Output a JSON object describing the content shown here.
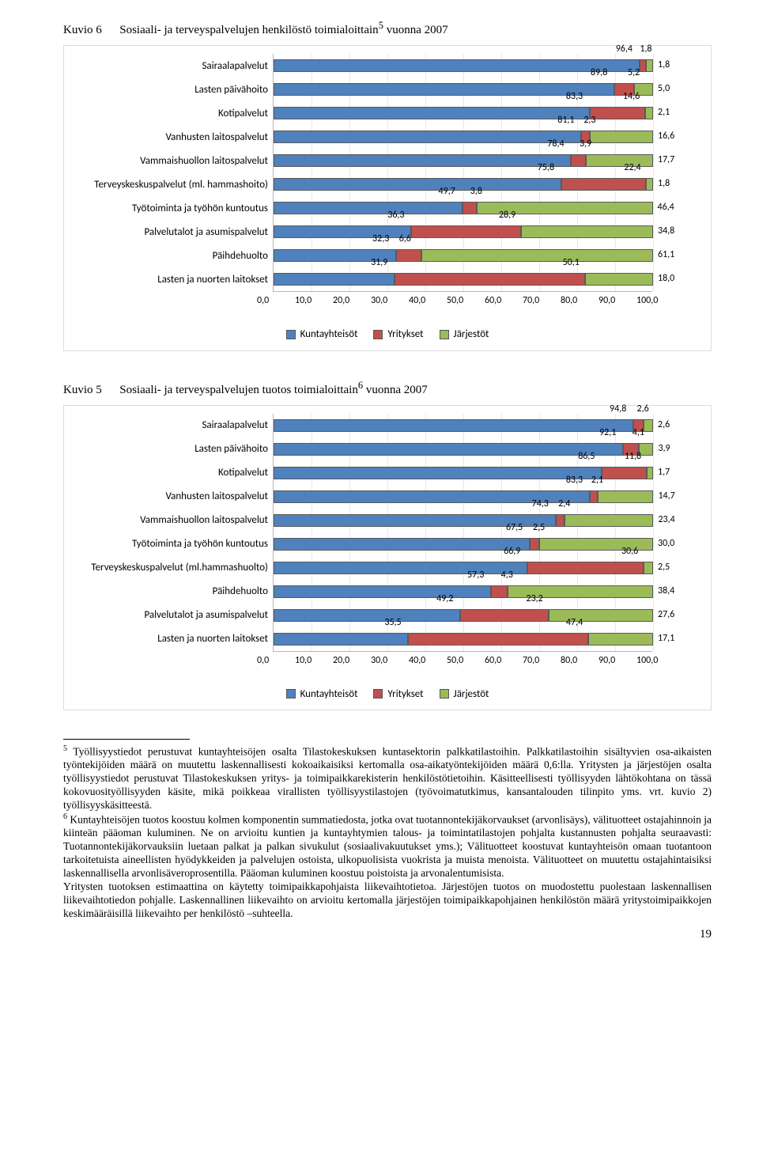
{
  "colors": {
    "series1": "#4f81bd",
    "series2": "#c0504d",
    "series3": "#9bbb59",
    "border": "#dcdcdc",
    "text": "#000000"
  },
  "xaxis": {
    "min": 0,
    "max": 100,
    "step": 10,
    "ticks": [
      "0,0",
      "10,0",
      "20,0",
      "30,0",
      "40,0",
      "50,0",
      "60,0",
      "70,0",
      "80,0",
      "90,0",
      "100,0"
    ]
  },
  "legend": [
    "Kuntayhteisöt",
    "Yritykset",
    "Järjestöt"
  ],
  "fig1": {
    "title_label": "Kuvio 6",
    "title_text": "Sosiaali- ja terveyspalvelujen henkilöstö toimialoittain",
    "title_sup": "5",
    "title_after": " vuonna 2007",
    "rows": [
      {
        "label": "Sairaalapalvelut",
        "v": [
          96.4,
          1.8,
          1.8
        ],
        "d": [
          "96,4",
          "1,8",
          "1,8"
        ]
      },
      {
        "label": "Lasten päivähoito",
        "v": [
          89.8,
          5.2,
          5.0
        ],
        "d": [
          "89,8",
          "5,2",
          "5,0"
        ]
      },
      {
        "label": "Kotipalvelut",
        "v": [
          83.3,
          14.6,
          2.1
        ],
        "d": [
          "83,3",
          "14,6",
          "2,1"
        ]
      },
      {
        "label": "Vanhusten laitospalvelut",
        "v": [
          81.1,
          2.3,
          16.6
        ],
        "d": [
          "81,1",
          "2,3",
          "16,6"
        ]
      },
      {
        "label": "Vammaishuollon laitospalvelut",
        "v": [
          78.4,
          3.9,
          17.7
        ],
        "d": [
          "78,4",
          "3,9",
          "17,7"
        ]
      },
      {
        "label": "Terveyskeskuspalvelut (ml. hammashoito)",
        "v": [
          75.8,
          22.4,
          1.8
        ],
        "d": [
          "75,8",
          "22,4",
          "1,8"
        ]
      },
      {
        "label": "Työtoiminta ja työhön kuntoutus",
        "v": [
          49.7,
          3.8,
          46.4
        ],
        "d": [
          "49,7",
          "3,8",
          "46,4"
        ]
      },
      {
        "label": "Palvelutalot ja asumispalvelut",
        "v": [
          36.3,
          28.9,
          34.8
        ],
        "d": [
          "36,3",
          "28,9",
          "34,8"
        ]
      },
      {
        "label": "Päihdehuolto",
        "v": [
          32.3,
          6.6,
          61.1
        ],
        "d": [
          "32,3",
          "6,6",
          "61,1"
        ]
      },
      {
        "label": "Lasten ja nuorten laitokset",
        "v": [
          31.9,
          50.1,
          18.0
        ],
        "d": [
          "31,9",
          "50,1",
          "18,0"
        ]
      }
    ]
  },
  "fig2": {
    "title_label": "Kuvio 5",
    "title_text": "Sosiaali- ja terveyspalvelujen tuotos toimialoittain",
    "title_sup": "6",
    "title_after": " vuonna 2007",
    "rows": [
      {
        "label": "Sairaalapalvelut",
        "v": [
          94.8,
          2.6,
          2.6
        ],
        "d": [
          "94,8",
          "2,6",
          "2,6"
        ]
      },
      {
        "label": "Lasten päivähoito",
        "v": [
          92.1,
          4.1,
          3.9
        ],
        "d": [
          "92,1",
          "4,1",
          "3,9"
        ]
      },
      {
        "label": "Kotipalvelut",
        "v": [
          86.5,
          11.8,
          1.7
        ],
        "d": [
          "86,5",
          "11,8",
          "1,7"
        ]
      },
      {
        "label": "Vanhusten laitospalvelut",
        "v": [
          83.3,
          2.1,
          14.7
        ],
        "d": [
          "83,3",
          "2,1",
          "14,7"
        ]
      },
      {
        "label": "Vammaishuollon laitospalvelut",
        "v": [
          74.3,
          2.4,
          23.4
        ],
        "d": [
          "74,3",
          "2,4",
          "23,4"
        ]
      },
      {
        "label": "Työtoiminta ja työhön kuntoutus",
        "v": [
          67.5,
          2.5,
          30.0
        ],
        "d": [
          "67,5",
          "2,5",
          "30,0"
        ]
      },
      {
        "label": "Terveyskeskuspalvelut (ml.hammashuolto)",
        "v": [
          66.9,
          30.6,
          2.5
        ],
        "d": [
          "66,9",
          "30,6",
          "2,5"
        ]
      },
      {
        "label": "Päihdehuolto",
        "v": [
          57.3,
          4.3,
          38.4
        ],
        "d": [
          "57,3",
          "4,3",
          "38,4"
        ]
      },
      {
        "label": "Palvelutalot ja asumispalvelut",
        "v": [
          49.2,
          23.2,
          27.6
        ],
        "d": [
          "49,2",
          "23,2",
          "27,6"
        ]
      },
      {
        "label": "Lasten ja nuorten laitokset",
        "v": [
          35.5,
          47.4,
          17.1
        ],
        "d": [
          "35,5",
          "47,4",
          "17,1"
        ]
      }
    ]
  },
  "footnotes": {
    "fn5": "Työllisyystiedot perustuvat kuntayhteisöjen osalta Tilastokeskuksen kuntasektorin palkkatilastoihin. Palkkatilastoihin sisältyvien osa-aikaisten työntekijöiden määrä on muutettu laskennallisesti kokoaikaisiksi kertomalla osa-aikatyöntekijöiden määrä 0,6:lla. Yritysten ja järjestöjen osalta työllisyystiedot perustuvat Tilastokeskuksen yritys- ja toimipaikkarekisterin henkilöstötietoihin. Käsitteellisesti työllisyyden lähtökohtana on tässä kokovuosityöllisyyden käsite, mikä poikkeaa virallisten työllisyystilastojen (työvoimatutkimus, kansantalouden tilinpito yms. vrt. kuvio 2) työllisyyskäsitteestä.",
    "fn6": "Kuntayhteisöjen tuotos koostuu kolmen komponentin summatiedosta, jotka ovat tuotannontekijäkorvaukset (arvonlisäys), välituotteet ostajahinnoin ja kiinteän pääoman kuluminen. Ne on arvioitu kuntien ja kuntayhtymien talous- ja toimintatilastojen pohjalta kustannusten pohjalta seuraavasti: Tuotannontekijäkorvauksiin luetaan palkat ja palkan sivukulut (sosiaalivakuutukset yms.); Välituotteet koostuvat kuntayhteisön omaan tuotantoon tarkoitetuista aineellisten hyödykkeiden ja palvelujen ostoista, ulkopuolisista vuokrista ja muista menoista. Välituotteet on muutettu ostajahintaisiksi laskennallisella arvonlisäveroprosentilla. Pääoman kuluminen koostuu poistoista ja arvonalentumisista.",
    "fn6b": "Yritysten tuotoksen estimaattina on käytetty toimipaikkapohjaista liikevaihtotietoa. Järjestöjen tuotos on muodostettu puolestaan laskennallisen liikevaihtotiedon pohjalle. Laskennallinen liikevaihto on arvioitu kertomalla järjestöjen toimipaikkapohjainen henkilöstön määrä yritystoimipaikkojen keskimääräisillä liikevaihto per henkilöstö –suhteella."
  },
  "page_number": "19"
}
